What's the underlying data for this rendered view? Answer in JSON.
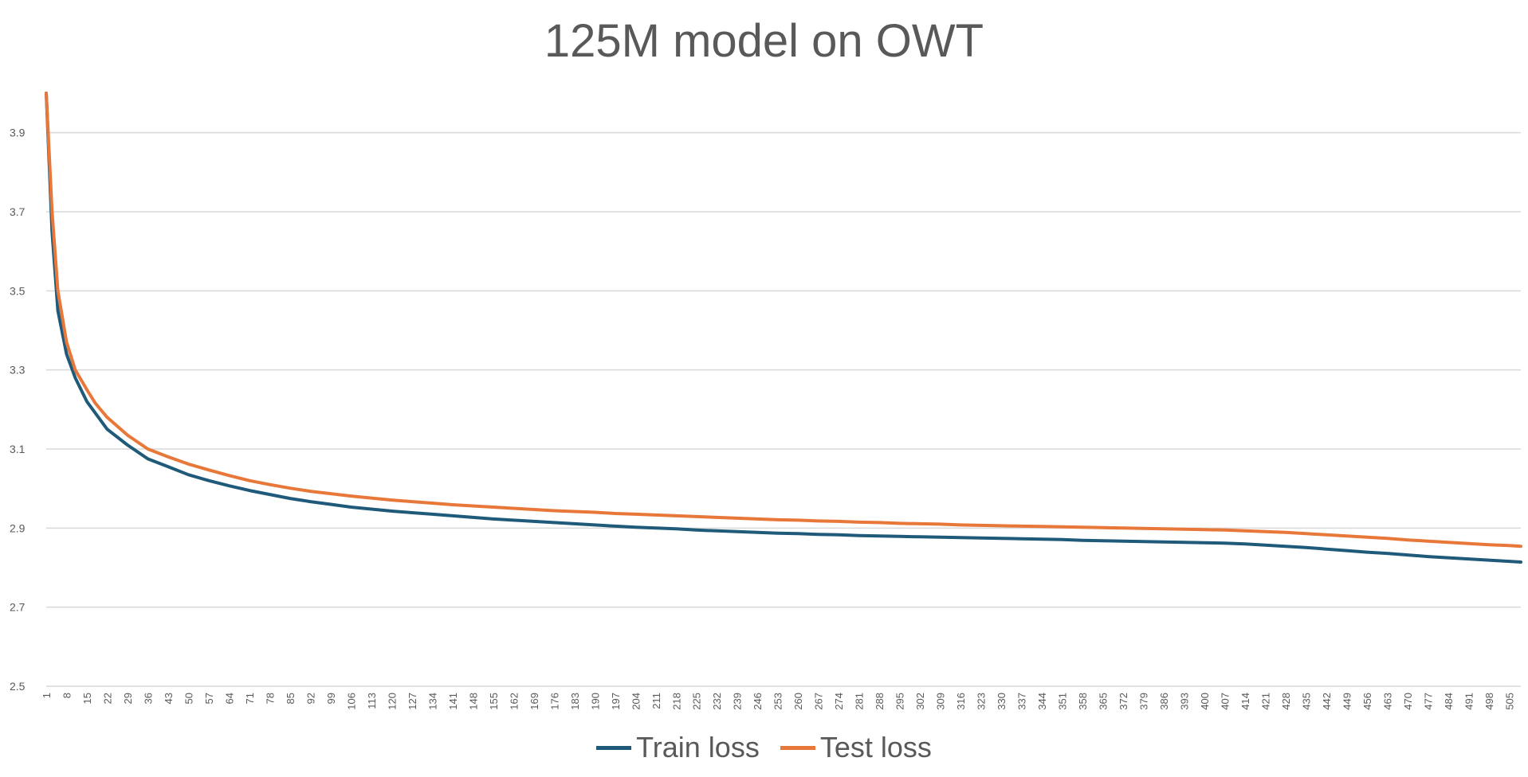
{
  "chart_data": {
    "type": "line",
    "title": "125M model on OWT",
    "xlabel": "",
    "ylabel": "",
    "ylim": [
      2.5,
      4.0
    ],
    "yticks": [
      2.5,
      2.7,
      2.9,
      3.1,
      3.3,
      3.5,
      3.7,
      3.9
    ],
    "x_range": [
      1,
      509
    ],
    "x_tick_start": 1,
    "x_tick_step": 7,
    "grid": true,
    "legend_position": "bottom",
    "series": [
      {
        "name": "Train loss",
        "color": "#1f5a7a",
        "points": [
          [
            1,
            4.0
          ],
          [
            3,
            3.65
          ],
          [
            5,
            3.45
          ],
          [
            8,
            3.34
          ],
          [
            11,
            3.28
          ],
          [
            15,
            3.22
          ],
          [
            18,
            3.19
          ],
          [
            22,
            3.15
          ],
          [
            29,
            3.11
          ],
          [
            36,
            3.075
          ],
          [
            43,
            3.055
          ],
          [
            50,
            3.035
          ],
          [
            57,
            3.02
          ],
          [
            64,
            3.007
          ],
          [
            71,
            2.995
          ],
          [
            78,
            2.985
          ],
          [
            85,
            2.975
          ],
          [
            92,
            2.967
          ],
          [
            99,
            2.96
          ],
          [
            106,
            2.953
          ],
          [
            113,
            2.948
          ],
          [
            120,
            2.943
          ],
          [
            127,
            2.939
          ],
          [
            134,
            2.935
          ],
          [
            141,
            2.931
          ],
          [
            148,
            2.927
          ],
          [
            155,
            2.923
          ],
          [
            162,
            2.92
          ],
          [
            169,
            2.917
          ],
          [
            176,
            2.914
          ],
          [
            183,
            2.911
          ],
          [
            190,
            2.908
          ],
          [
            197,
            2.905
          ],
          [
            204,
            2.902
          ],
          [
            211,
            2.9
          ],
          [
            218,
            2.898
          ],
          [
            225,
            2.895
          ],
          [
            232,
            2.893
          ],
          [
            239,
            2.891
          ],
          [
            246,
            2.889
          ],
          [
            253,
            2.887
          ],
          [
            260,
            2.886
          ],
          [
            267,
            2.884
          ],
          [
            274,
            2.883
          ],
          [
            281,
            2.881
          ],
          [
            288,
            2.88
          ],
          [
            295,
            2.879
          ],
          [
            302,
            2.878
          ],
          [
            309,
            2.877
          ],
          [
            316,
            2.876
          ],
          [
            323,
            2.875
          ],
          [
            330,
            2.874
          ],
          [
            337,
            2.873
          ],
          [
            344,
            2.872
          ],
          [
            351,
            2.871
          ],
          [
            358,
            2.869
          ],
          [
            365,
            2.868
          ],
          [
            372,
            2.867
          ],
          [
            379,
            2.866
          ],
          [
            386,
            2.865
          ],
          [
            393,
            2.864
          ],
          [
            400,
            2.863
          ],
          [
            407,
            2.862
          ],
          [
            414,
            2.86
          ],
          [
            421,
            2.857
          ],
          [
            428,
            2.854
          ],
          [
            435,
            2.851
          ],
          [
            442,
            2.847
          ],
          [
            449,
            2.843
          ],
          [
            456,
            2.839
          ],
          [
            463,
            2.836
          ],
          [
            470,
            2.832
          ],
          [
            477,
            2.828
          ],
          [
            484,
            2.825
          ],
          [
            491,
            2.822
          ],
          [
            498,
            2.819
          ],
          [
            505,
            2.816
          ],
          [
            509,
            2.814
          ]
        ]
      },
      {
        "name": "Test loss",
        "color": "#e8773a",
        "points": [
          [
            1,
            4.0
          ],
          [
            3,
            3.7
          ],
          [
            5,
            3.5
          ],
          [
            8,
            3.37
          ],
          [
            11,
            3.3
          ],
          [
            15,
            3.25
          ],
          [
            18,
            3.215
          ],
          [
            22,
            3.18
          ],
          [
            29,
            3.135
          ],
          [
            36,
            3.1
          ],
          [
            43,
            3.08
          ],
          [
            50,
            3.062
          ],
          [
            57,
            3.047
          ],
          [
            64,
            3.033
          ],
          [
            71,
            3.02
          ],
          [
            78,
            3.01
          ],
          [
            85,
            3.001
          ],
          [
            92,
            2.993
          ],
          [
            99,
            2.987
          ],
          [
            106,
            2.981
          ],
          [
            113,
            2.976
          ],
          [
            120,
            2.971
          ],
          [
            127,
            2.967
          ],
          [
            134,
            2.963
          ],
          [
            141,
            2.959
          ],
          [
            148,
            2.956
          ],
          [
            155,
            2.953
          ],
          [
            162,
            2.95
          ],
          [
            169,
            2.947
          ],
          [
            176,
            2.944
          ],
          [
            183,
            2.942
          ],
          [
            190,
            2.94
          ],
          [
            197,
            2.937
          ],
          [
            204,
            2.935
          ],
          [
            211,
            2.933
          ],
          [
            218,
            2.931
          ],
          [
            225,
            2.929
          ],
          [
            232,
            2.927
          ],
          [
            239,
            2.925
          ],
          [
            246,
            2.923
          ],
          [
            253,
            2.921
          ],
          [
            260,
            2.92
          ],
          [
            267,
            2.918
          ],
          [
            274,
            2.917
          ],
          [
            281,
            2.915
          ],
          [
            288,
            2.914
          ],
          [
            295,
            2.912
          ],
          [
            302,
            2.911
          ],
          [
            309,
            2.91
          ],
          [
            316,
            2.908
          ],
          [
            323,
            2.907
          ],
          [
            330,
            2.906
          ],
          [
            337,
            2.905
          ],
          [
            344,
            2.904
          ],
          [
            351,
            2.903
          ],
          [
            358,
            2.902
          ],
          [
            365,
            2.901
          ],
          [
            372,
            2.9
          ],
          [
            379,
            2.899
          ],
          [
            386,
            2.898
          ],
          [
            393,
            2.897
          ],
          [
            400,
            2.896
          ],
          [
            407,
            2.895
          ],
          [
            414,
            2.893
          ],
          [
            421,
            2.891
          ],
          [
            428,
            2.889
          ],
          [
            435,
            2.886
          ],
          [
            442,
            2.883
          ],
          [
            449,
            2.88
          ],
          [
            456,
            2.877
          ],
          [
            463,
            2.874
          ],
          [
            470,
            2.87
          ],
          [
            477,
            2.867
          ],
          [
            484,
            2.864
          ],
          [
            491,
            2.861
          ],
          [
            498,
            2.858
          ],
          [
            505,
            2.856
          ],
          [
            509,
            2.854
          ]
        ]
      }
    ]
  }
}
